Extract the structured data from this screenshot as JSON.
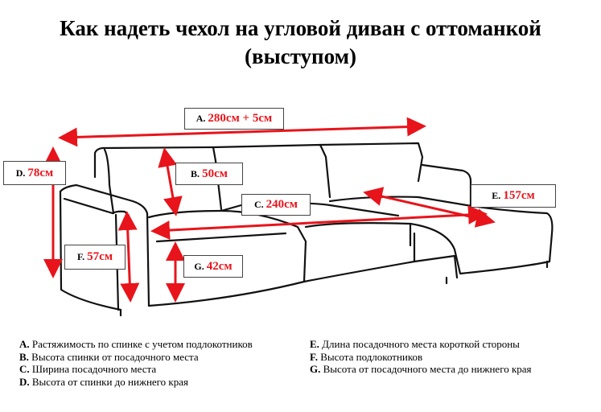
{
  "title": {
    "line1": "Как надеть чехол на угловой диван с оттоманкой",
    "line2": "(выступом)"
  },
  "labels": {
    "A": {
      "key": "A.",
      "value": "280см + 5см"
    },
    "B": {
      "key": "B.",
      "value": "50см"
    },
    "C": {
      "key": "C.",
      "value": "240см"
    },
    "D": {
      "key": "D.",
      "value": "78см"
    },
    "E": {
      "key": "E.",
      "value": "157см"
    },
    "F": {
      "key": "F.",
      "value": "57см"
    },
    "G": {
      "key": "G.",
      "value": "42см"
    }
  },
  "legend": {
    "left": [
      {
        "key": "A.",
        "text": "Растяжимость по спинке с учетом подлокотников"
      },
      {
        "key": "B.",
        "text": "Высота спинки от посадочного места"
      },
      {
        "key": "C.",
        "text": "Ширина посадочного места"
      },
      {
        "key": "D.",
        "text": "Высота от спинки до нижнего края"
      }
    ],
    "right": [
      {
        "key": "E.",
        "text": "Длина посадочного места короткой стороны"
      },
      {
        "key": "F.",
        "text": "Высота подлокотников"
      },
      {
        "key": "G.",
        "text": "Высота от посадочного места до нижнего края"
      }
    ]
  },
  "colors": {
    "arrow": "#e8141b",
    "outline": "#111111"
  }
}
